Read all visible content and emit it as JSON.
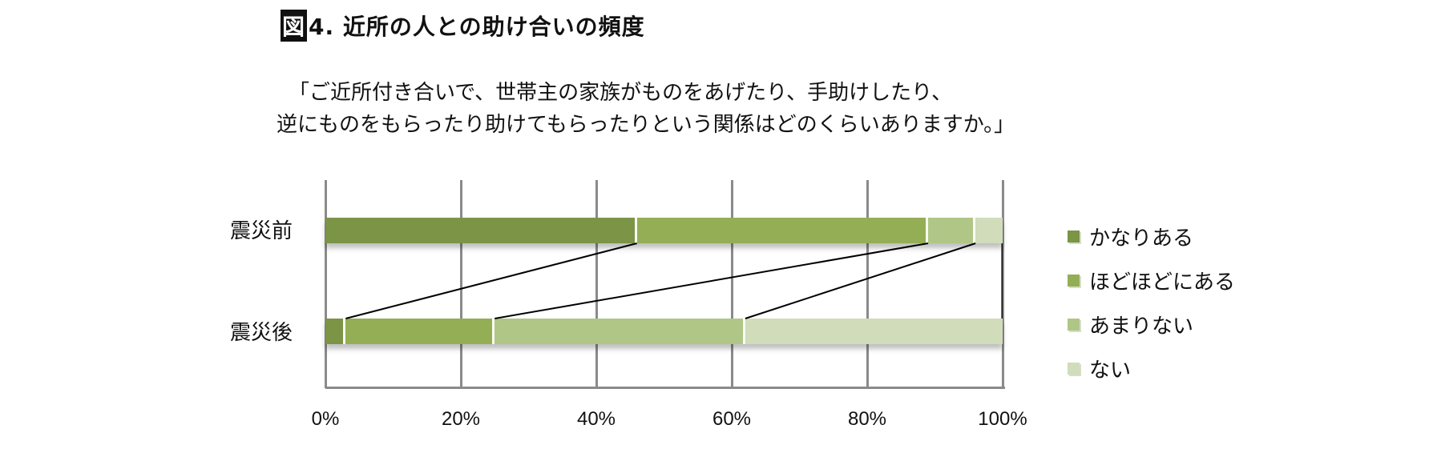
{
  "figure": {
    "label": "図",
    "number": "4.",
    "title": "近所の人との助け合いの頻度"
  },
  "question": {
    "line1": "「ご近所付き合いで、世帯主の家族がものをあげたり、手助けしたり、",
    "line2": "逆にものをもらったり助けてもらったりという関係はどのくらいありますか。」"
  },
  "chart_data": {
    "type": "bar",
    "orientation": "horizontal",
    "stacked": "percent",
    "title": "図4. 近所の人との助け合いの頻度",
    "subtitle": "「ご近所付き合いで、世帯主の家族がものをあげたり、手助けしたり、逆にものをもらったり助けてもらったりという関係はどのくらいありますか。」",
    "categories": [
      "震災前",
      "震災後"
    ],
    "series": [
      {
        "name": "かなりある",
        "color": "#7b9446",
        "values": [
          46,
          3
        ]
      },
      {
        "name": "ほどほどにある",
        "color": "#93ae55",
        "values": [
          43,
          22
        ]
      },
      {
        "name": "あまりない",
        "color": "#afc687",
        "values": [
          7,
          37
        ]
      },
      {
        "name": "ない",
        "color": "#d0dcba",
        "values": [
          4,
          38
        ]
      }
    ],
    "xlabel": "",
    "ylabel": "",
    "xlim": [
      0,
      100
    ],
    "x_ticks": [
      "0%",
      "20%",
      "40%",
      "60%",
      "80%",
      "100%"
    ],
    "grid": true,
    "series_lines": true,
    "legend_position": "right"
  }
}
